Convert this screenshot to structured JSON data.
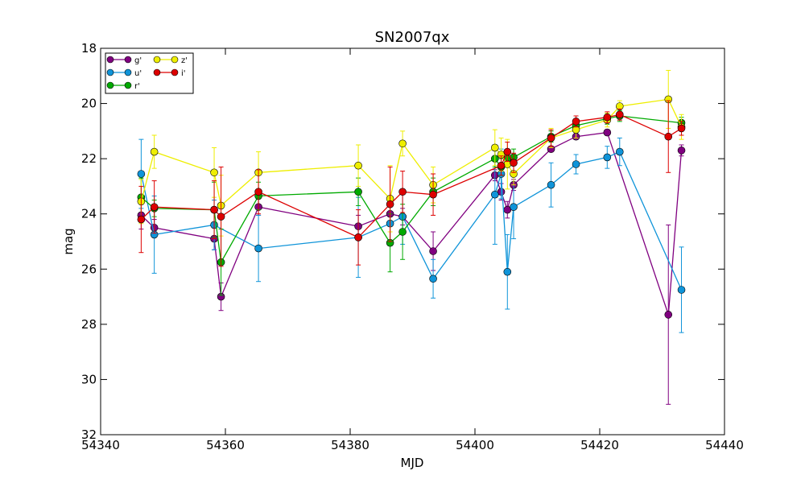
{
  "chart_data": {
    "type": "scatter",
    "title": "SN2007qx",
    "xlabel": "MJD",
    "ylabel": "mag",
    "xlim": [
      54340,
      54440
    ],
    "ylim": [
      32,
      18
    ],
    "y_inverted": true,
    "xticks": [
      "54340",
      "54360",
      "54380",
      "54400",
      "54420",
      "54440"
    ],
    "yticks": [
      "18",
      "20",
      "22",
      "24",
      "26",
      "28",
      "30",
      "32"
    ],
    "grid": false,
    "legend_position": "top-left",
    "series": [
      {
        "name": "g'",
        "color": "#800080",
        "points": [
          {
            "x": 54346.5,
            "y": 24.05,
            "err": 0.5
          },
          {
            "x": 54348.6,
            "y": 24.5,
            "err": 0.3
          },
          {
            "x": 54358.2,
            "y": 24.9,
            "err": 0.4
          },
          {
            "x": 54359.3,
            "y": 27.0,
            "err": 0.5
          },
          {
            "x": 54365.3,
            "y": 23.75,
            "err": 0.3
          },
          {
            "x": 54381.3,
            "y": 24.45,
            "err": 0.4
          },
          {
            "x": 54386.4,
            "y": 24.0,
            "err": 0.3
          },
          {
            "x": 54388.4,
            "y": 24.1,
            "err": 0.3
          },
          {
            "x": 54393.3,
            "y": 25.35,
            "err": 0.7
          },
          {
            "x": 54403.2,
            "y": 22.6,
            "err": 0.2
          },
          {
            "x": 54404.2,
            "y": 23.2,
            "err": 0.3
          },
          {
            "x": 54405.2,
            "y": 23.85,
            "err": 0.3
          },
          {
            "x": 54406.2,
            "y": 22.95,
            "err": 0.2
          },
          {
            "x": 54412.2,
            "y": 21.65,
            "err": 0.1
          },
          {
            "x": 54416.2,
            "y": 21.2,
            "err": 0.1
          },
          {
            "x": 54421.2,
            "y": 21.05,
            "err": 0.1
          },
          {
            "x": 54431.0,
            "y": 27.65,
            "err": 3.25
          },
          {
            "x": 54433.1,
            "y": 21.7,
            "err": 0.2
          }
        ]
      },
      {
        "name": "u'",
        "color": "#0F94D9",
        "points": [
          {
            "x": 54346.5,
            "y": 22.55,
            "err": 1.25
          },
          {
            "x": 54348.6,
            "y": 24.75,
            "err": 1.4
          },
          {
            "x": 54358.2,
            "y": 24.4,
            "err": 0.9
          },
          {
            "x": 54365.3,
            "y": 25.25,
            "err": 1.2
          },
          {
            "x": 54381.3,
            "y": 24.85,
            "err": 1.45
          },
          {
            "x": 54386.4,
            "y": 24.35,
            "err": 0.8
          },
          {
            "x": 54388.4,
            "y": 24.1,
            "err": 1.0
          },
          {
            "x": 54393.3,
            "y": 26.35,
            "err": 0.7
          },
          {
            "x": 54403.2,
            "y": 23.3,
            "err": 1.8
          },
          {
            "x": 54404.2,
            "y": 22.55,
            "err": 0.9
          },
          {
            "x": 54405.2,
            "y": 26.1,
            "err": 1.35
          },
          {
            "x": 54406.2,
            "y": 23.75,
            "err": 1.15
          },
          {
            "x": 54412.2,
            "y": 22.95,
            "err": 0.8
          },
          {
            "x": 54416.2,
            "y": 22.2,
            "err": 0.35
          },
          {
            "x": 54421.2,
            "y": 21.95,
            "err": 0.4
          },
          {
            "x": 54423.2,
            "y": 21.75,
            "err": 0.5
          },
          {
            "x": 54433.1,
            "y": 26.75,
            "err": 1.55
          }
        ]
      },
      {
        "name": "r'",
        "color": "#00AA00",
        "points": [
          {
            "x": 54346.5,
            "y": 23.4,
            "err": 0.7
          },
          {
            "x": 54348.6,
            "y": 23.8,
            "err": 0.3
          },
          {
            "x": 54358.2,
            "y": 23.85,
            "err": 1.0
          },
          {
            "x": 54359.3,
            "y": 25.75,
            "err": 1.2
          },
          {
            "x": 54365.3,
            "y": 23.35,
            "err": 0.5
          },
          {
            "x": 54381.3,
            "y": 23.2,
            "err": 0.5
          },
          {
            "x": 54386.4,
            "y": 25.05,
            "err": 1.05
          },
          {
            "x": 54388.4,
            "y": 24.65,
            "err": 1.0
          },
          {
            "x": 54393.3,
            "y": 23.2,
            "err": 0.5
          },
          {
            "x": 54403.2,
            "y": 22.0,
            "err": 0.3
          },
          {
            "x": 54404.2,
            "y": 22.3,
            "err": 0.3
          },
          {
            "x": 54405.2,
            "y": 22.0,
            "err": 0.3
          },
          {
            "x": 54406.2,
            "y": 21.95,
            "err": 0.3
          },
          {
            "x": 54412.2,
            "y": 21.2,
            "err": 0.2
          },
          {
            "x": 54416.2,
            "y": 20.8,
            "err": 0.2
          },
          {
            "x": 54421.2,
            "y": 20.55,
            "err": 0.2
          },
          {
            "x": 54423.2,
            "y": 20.45,
            "err": 0.2
          },
          {
            "x": 54433.1,
            "y": 20.7,
            "err": 0.2
          }
        ]
      },
      {
        "name": "z'",
        "color": "#EEEE00",
        "points": [
          {
            "x": 54346.5,
            "y": 23.55,
            "err": 0.8
          },
          {
            "x": 54348.6,
            "y": 21.75,
            "err": 0.6
          },
          {
            "x": 54358.2,
            "y": 22.5,
            "err": 0.9
          },
          {
            "x": 54359.3,
            "y": 23.7,
            "err": 1.1
          },
          {
            "x": 54365.3,
            "y": 22.5,
            "err": 0.75
          },
          {
            "x": 54381.3,
            "y": 22.25,
            "err": 0.75
          },
          {
            "x": 54386.4,
            "y": 23.45,
            "err": 1.2
          },
          {
            "x": 54388.4,
            "y": 21.45,
            "err": 0.45
          },
          {
            "x": 54393.3,
            "y": 22.95,
            "err": 0.65
          },
          {
            "x": 54403.2,
            "y": 21.6,
            "err": 0.65
          },
          {
            "x": 54404.2,
            "y": 21.85,
            "err": 0.6
          },
          {
            "x": 54405.2,
            "y": 22.2,
            "err": 0.9
          },
          {
            "x": 54406.2,
            "y": 22.55,
            "err": 0.4
          },
          {
            "x": 54412.2,
            "y": 21.25,
            "err": 0.35
          },
          {
            "x": 54416.2,
            "y": 20.95,
            "err": 0.3
          },
          {
            "x": 54421.2,
            "y": 20.6,
            "err": 0.25
          },
          {
            "x": 54423.2,
            "y": 20.1,
            "err": 0.2
          },
          {
            "x": 54431.0,
            "y": 19.85,
            "err": 1.05
          },
          {
            "x": 54433.1,
            "y": 20.85,
            "err": 0.45
          }
        ]
      },
      {
        "name": "i'",
        "color": "#DD0000",
        "points": [
          {
            "x": 54346.5,
            "y": 24.2,
            "err": 1.2
          },
          {
            "x": 54348.6,
            "y": 23.75,
            "err": 0.95
          },
          {
            "x": 54358.2,
            "y": 23.85,
            "err": 1.05
          },
          {
            "x": 54359.3,
            "y": 24.1,
            "err": 1.8
          },
          {
            "x": 54365.3,
            "y": 23.2,
            "err": 0.8
          },
          {
            "x": 54381.3,
            "y": 24.85,
            "err": 1.0
          },
          {
            "x": 54386.4,
            "y": 23.65,
            "err": 1.35
          },
          {
            "x": 54388.4,
            "y": 23.2,
            "err": 0.75
          },
          {
            "x": 54393.3,
            "y": 23.3,
            "err": 0.75
          },
          {
            "x": 54404.2,
            "y": 22.25,
            "err": 0.35
          },
          {
            "x": 54405.2,
            "y": 21.75,
            "err": 0.35
          },
          {
            "x": 54406.2,
            "y": 22.15,
            "err": 0.35
          },
          {
            "x": 54412.2,
            "y": 21.25,
            "err": 0.3
          },
          {
            "x": 54416.2,
            "y": 20.65,
            "err": 0.2
          },
          {
            "x": 54421.2,
            "y": 20.5,
            "err": 0.2
          },
          {
            "x": 54423.2,
            "y": 20.4,
            "err": 0.2
          },
          {
            "x": 54431.0,
            "y": 21.2,
            "err": 1.3
          },
          {
            "x": 54433.1,
            "y": 20.9,
            "err": 0.25
          }
        ]
      }
    ]
  }
}
